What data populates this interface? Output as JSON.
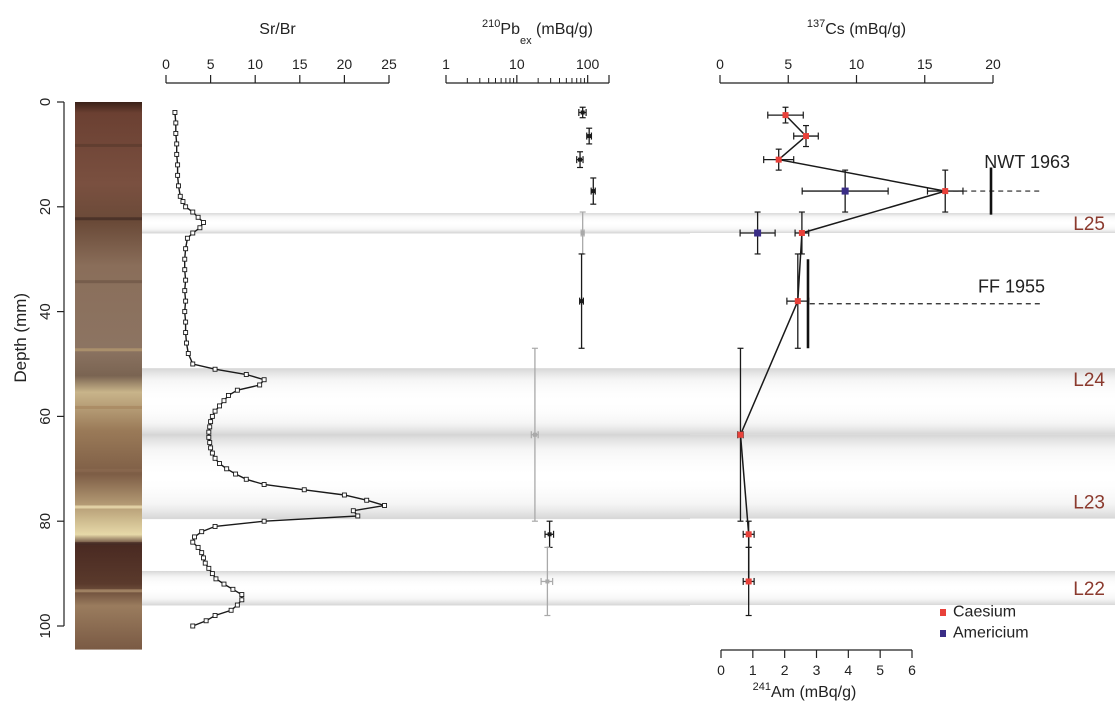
{
  "colors": {
    "caesium": "#e8413a",
    "americium": "#3a2d86",
    "layer_label": "#8b3a2e",
    "line": "#1a1a1a",
    "grey_point": "#a9a9a9"
  },
  "chart_data": [
    {
      "type": "image",
      "name": "core-photo",
      "ylabel": "Depth (mm)",
      "y_ticks": [
        0,
        20,
        40,
        60,
        80,
        100
      ],
      "ylim": [
        0,
        100
      ]
    },
    {
      "type": "line",
      "title": "Sr/Br",
      "x_ticks": [
        0,
        5,
        10,
        15,
        20,
        25
      ],
      "xlim": [
        0,
        25
      ],
      "y_axis": "Depth (mm)",
      "depth": [
        2,
        4,
        6,
        8,
        10,
        12,
        14,
        16,
        18,
        19,
        20,
        21,
        22,
        23,
        24,
        25,
        26,
        28,
        30,
        32,
        34,
        36,
        38,
        40,
        42,
        44,
        46,
        48,
        50,
        51,
        52,
        53,
        54,
        55,
        56,
        57,
        58,
        59,
        60,
        61,
        62,
        63,
        64,
        65,
        66,
        67,
        68,
        69,
        70,
        71,
        72,
        73,
        74,
        75,
        76,
        77,
        78,
        79,
        80,
        81,
        82,
        83,
        84,
        85,
        86,
        87,
        88,
        89,
        90,
        91,
        92,
        93,
        94,
        95,
        96,
        97,
        98,
        99,
        100
      ],
      "values": [
        1.0,
        1.1,
        1.1,
        1.2,
        1.2,
        1.3,
        1.3,
        1.4,
        1.6,
        1.9,
        2.2,
        3.0,
        3.6,
        4.2,
        3.8,
        3.0,
        2.4,
        2.2,
        2.1,
        2.1,
        2.2,
        2.1,
        2.2,
        2.1,
        2.2,
        2.2,
        2.3,
        2.5,
        3.0,
        5.5,
        9.0,
        11.0,
        10.5,
        8.0,
        7.0,
        6.5,
        6.0,
        5.5,
        5.2,
        5.0,
        4.9,
        4.8,
        4.8,
        4.9,
        5.0,
        5.2,
        5.5,
        6.0,
        6.8,
        7.8,
        9.0,
        11.0,
        15.5,
        20.0,
        22.5,
        24.5,
        21.0,
        21.5,
        11.0,
        5.5,
        4.0,
        3.2,
        3.0,
        3.6,
        4.0,
        4.2,
        4.4,
        4.8,
        5.2,
        5.6,
        6.5,
        7.5,
        8.5,
        8.5,
        8.0,
        7.3,
        5.5,
        4.5,
        3.0
      ]
    },
    {
      "type": "scatter",
      "title": "210Pbex (mBq/g)",
      "title_html": [
        "210",
        "Pb",
        "ex",
        " (mBq/g)"
      ],
      "x_scale": "log",
      "x_ticks": [
        1,
        10,
        100
      ],
      "xlim": [
        1,
        200
      ],
      "points": [
        {
          "depth": 2,
          "value": 85,
          "err_x": 10,
          "err_y": 1,
          "grey": false
        },
        {
          "depth": 6.5,
          "value": 105,
          "err_x": 8,
          "err_y": 1.5,
          "grey": false
        },
        {
          "depth": 11,
          "value": 78,
          "err_x": 8,
          "err_y": 1.5,
          "grey": false
        },
        {
          "depth": 17,
          "value": 120,
          "err_x": 8,
          "err_y": 2.5,
          "grey": false
        },
        {
          "depth": 25,
          "value": 85,
          "err_x": 4,
          "err_y": 4,
          "grey": true
        },
        {
          "depth": 38,
          "value": 82,
          "err_x": 5,
          "err_y": 9,
          "grey": false
        },
        {
          "depth": 63.5,
          "value": 18,
          "err_x": 2,
          "err_y": 16.5,
          "grey": true
        },
        {
          "depth": 82.5,
          "value": 29,
          "err_x": 4,
          "err_y": 2.5,
          "grey": false
        },
        {
          "depth": 91.5,
          "value": 27,
          "err_x": 5,
          "err_y": 6.5,
          "grey": true
        }
      ]
    },
    {
      "type": "line",
      "title": "137Cs (mBq/g)",
      "title_html": [
        "137",
        "Cs",
        " (mBq/g)"
      ],
      "x_ticks": [
        0,
        5,
        10,
        15,
        20
      ],
      "xlim": [
        0,
        20
      ],
      "series": [
        {
          "name": "Caesium",
          "points": [
            {
              "depth": 2.5,
              "value": 4.8,
              "err_x": 1.3,
              "err_y": 1.5
            },
            {
              "depth": 6.5,
              "value": 6.3,
              "err_x": 0.9,
              "err_y": 2
            },
            {
              "depth": 11,
              "value": 4.3,
              "err_x": 1.1,
              "err_y": 2
            },
            {
              "depth": 17,
              "value": 16.5,
              "err_x": 1.3,
              "err_y": 4
            },
            {
              "depth": 25,
              "value": 6.0,
              "err_x": 0.5,
              "err_y": 4
            },
            {
              "depth": 38,
              "value": 5.7,
              "err_x": 0.8,
              "err_y": 9
            },
            {
              "depth": 63.5,
              "value": 1.5,
              "err_x": 0.2,
              "err_y": 16.5
            },
            {
              "depth": 82.5,
              "value": 2.1,
              "err_x": 0.4,
              "err_y": 2.5
            },
            {
              "depth": 91.5,
              "value": 2.1,
              "err_x": 0.4,
              "err_y": 6.5
            }
          ]
        }
      ]
    },
    {
      "type": "scatter",
      "title": "241Am (mBq/g)",
      "title_html": [
        "241",
        "Am (mBq/g)"
      ],
      "x_ticks": [
        0,
        1,
        2,
        3,
        4,
        5,
        6
      ],
      "xlim": [
        0,
        6
      ],
      "series": [
        {
          "name": "Americium",
          "points": [
            {
              "depth": 17,
              "value": 3.9,
              "err_x": 1.35,
              "err_y": 4
            },
            {
              "depth": 25,
              "value": 1.15,
              "err_x": 0.55,
              "err_y": 4
            }
          ]
        }
      ]
    }
  ],
  "bands": [
    {
      "label": "L25",
      "top": 21.2,
      "bottom": 25.0
    },
    {
      "label": "L24",
      "top": 50.8,
      "bottom": 63.5
    },
    {
      "label": "L23",
      "top": 63.5,
      "bottom": 79.5
    },
    {
      "label": "L22",
      "top": 89.5,
      "bottom": 96.0
    }
  ],
  "annotations": [
    {
      "label": "NWT 1963",
      "depth": 17
    },
    {
      "label": "FF 1955",
      "depth": 38.5
    }
  ],
  "legend": {
    "position": "bottom-right",
    "items": [
      {
        "label": "Caesium",
        "color": "#e8413a"
      },
      {
        "label": "Americium",
        "color": "#3a2d86"
      }
    ]
  }
}
